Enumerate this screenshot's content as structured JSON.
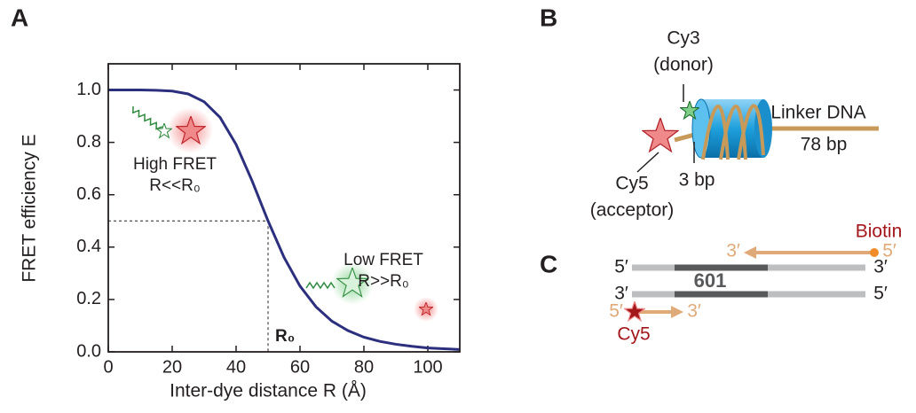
{
  "panel_labels": [
    "A",
    "B",
    "C"
  ],
  "chart_data": {
    "type": "line",
    "x": [
      0,
      5,
      10,
      15,
      20,
      25,
      30,
      35,
      40,
      45,
      50,
      55,
      60,
      65,
      70,
      75,
      80,
      85,
      90,
      95,
      100,
      105,
      110
    ],
    "series": [
      {
        "color": "#2b2f7e",
        "values": [
          1,
          1,
          1,
          0.999,
          0.996,
          0.985,
          0.955,
          0.895,
          0.792,
          0.653,
          0.5,
          0.361,
          0.251,
          0.172,
          0.117,
          0.081,
          0.056,
          0.04,
          0.029,
          0.021,
          0.015,
          0.012,
          0.009
        ]
      }
    ],
    "xlim": [
      0,
      110
    ],
    "xticks": [
      0,
      20,
      40,
      60,
      80,
      100
    ],
    "ylim": [
      0,
      1.1
    ],
    "yticks": [
      {
        "value": 0,
        "label": "0.0"
      },
      0.2,
      0.4,
      0.6,
      0.8,
      {
        "value": 1,
        "label": "1.0"
      }
    ],
    "x_label": "Inter-dye distance R (Å)",
    "y_label": "FRET efficiency E",
    "reference": {
      "x": 50,
      "y": 0.5,
      "label": "R₀"
    },
    "annotations": [
      "High FRET",
      "R<<R₀",
      "Low FRET",
      "R>>R₀"
    ]
  },
  "diagram_b": {
    "donor": "Cy3",
    "donor_role": "(donor)",
    "acceptor": "Cy5",
    "acceptor_role": "(acceptor)",
    "spacer": "3 bp",
    "linker": "Linker DNA",
    "linker_length": "78 bp"
  },
  "diagram_c": {
    "biotin": "Biotin",
    "sequence": "601",
    "dye": "Cy5",
    "ends": [
      "3′",
      "5′",
      "5′",
      "3′",
      "3′",
      "5′",
      "5′",
      "3′"
    ]
  }
}
